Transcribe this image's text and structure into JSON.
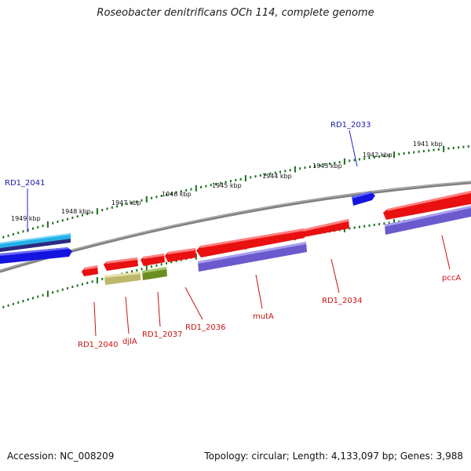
{
  "title": "Roseobacter denitrificans OCh 114, complete genome",
  "accession_text": "Accession: NC_008209",
  "topology_text": "Topology: circular; Length: 4,133,097 bp; Genes: 3,988",
  "colors": {
    "backbone": "#808080",
    "tick": "#1f6f1f",
    "forward_label": "#1a1aaa",
    "reverse_label": "#cc1111",
    "gene_red": "#e81010",
    "gene_blue": "#1414e0",
    "gene_lightblue": "#22b0e8",
    "gene_navy": "#2a2a80",
    "gene_purple": "#6a5acd",
    "gene_khaki": "#bdb76b",
    "gene_olive": "#6b8e23"
  },
  "scale_labels": [
    "1949 kbp",
    "1948 kbp",
    "1947 kbp",
    "1946 kbp",
    "1945 kbp",
    "1944 kbp",
    "1943 kbp",
    "1942 kbp",
    "1941 kbp"
  ],
  "forward_gene_labels": [
    "RD1_2041",
    "RD1_2033"
  ],
  "reverse_gene_labels": [
    "RD1_2040",
    "djlA",
    "RD1_2037",
    "RD1_2036",
    "mutA",
    "RD1_2034",
    "pccA"
  ]
}
